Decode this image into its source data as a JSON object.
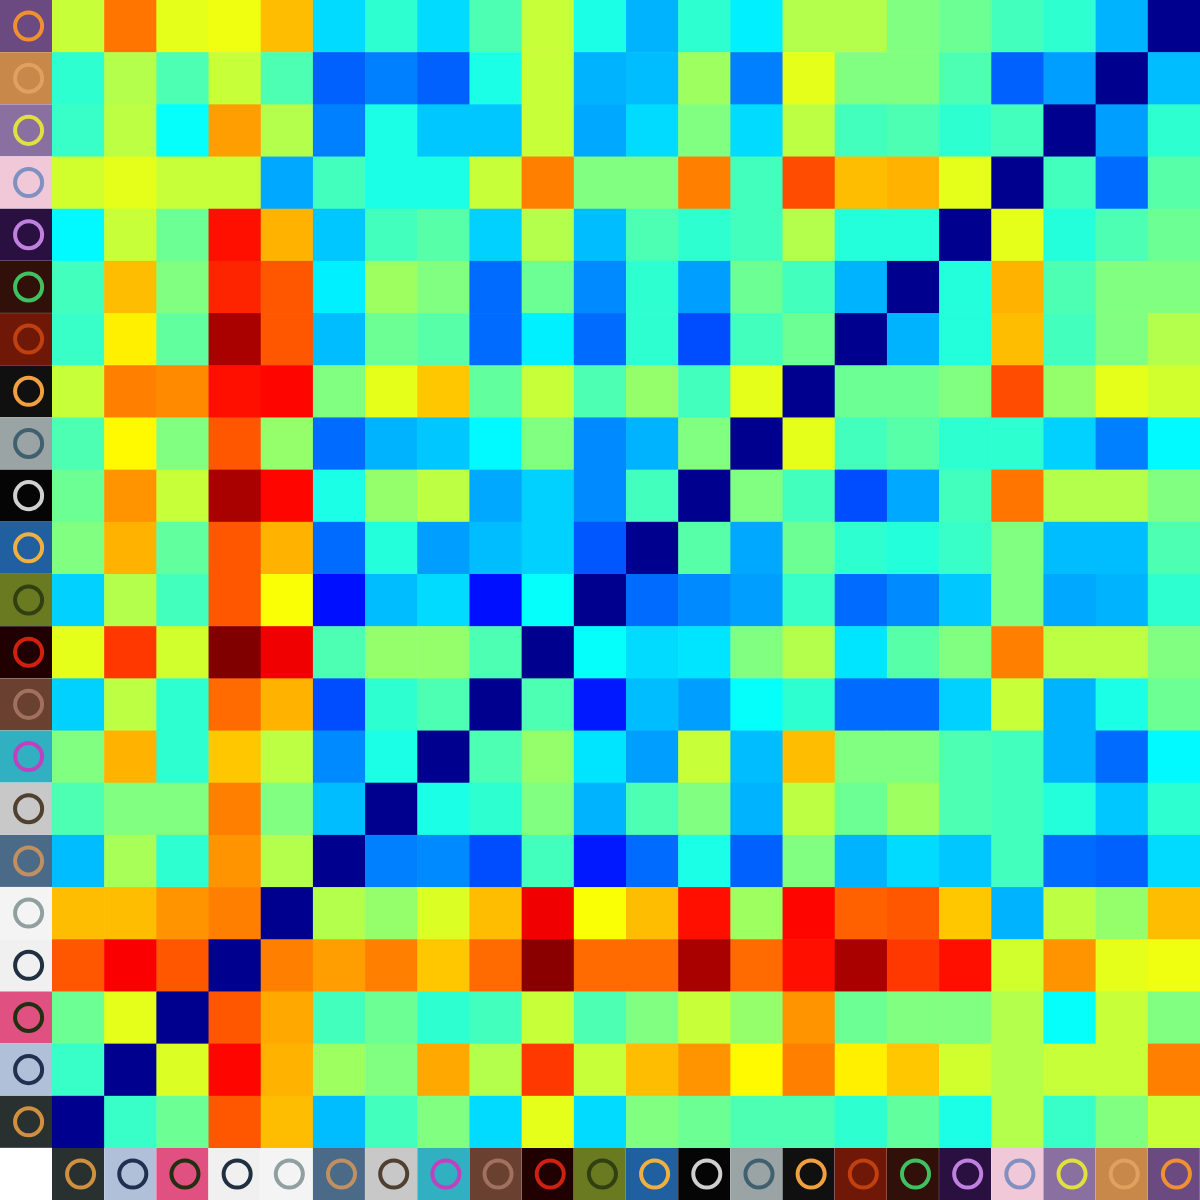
{
  "chart_data": {
    "type": "heatmap",
    "tick_labels": false,
    "zlim": [
      0,
      1
    ],
    "cells": [
      [
        0.57,
        0.76,
        0.6,
        0.61,
        0.69,
        0.34,
        0.42,
        0.34,
        0.45,
        0.57,
        0.4,
        0.3,
        0.42,
        0.36,
        0.55,
        0.55,
        0.5,
        0.48,
        0.44,
        0.42,
        0.3,
        0
      ],
      [
        0.42,
        0.55,
        0.45,
        0.57,
        0.45,
        0.22,
        0.25,
        0.22,
        0.4,
        0.57,
        0.3,
        0.31,
        0.53,
        0.25,
        0.6,
        0.5,
        0.5,
        0.45,
        0.22,
        0.28,
        0,
        0.31
      ],
      [
        0.43,
        0.56,
        0.38,
        0.72,
        0.55,
        0.25,
        0.4,
        0.32,
        0.32,
        0.57,
        0.29,
        0.34,
        0.5,
        0.34,
        0.56,
        0.44,
        0.45,
        0.42,
        0.44,
        0,
        0.28,
        0.42
      ],
      [
        0.58,
        0.6,
        0.57,
        0.57,
        0.29,
        0.44,
        0.4,
        0.4,
        0.57,
        0.75,
        0.5,
        0.5,
        0.75,
        0.44,
        0.8,
        0.69,
        0.7,
        0.6,
        0,
        0.44,
        0.23,
        0.46
      ],
      [
        0.37,
        0.57,
        0.48,
        0.86,
        0.7,
        0.32,
        0.44,
        0.46,
        0.33,
        0.55,
        0.31,
        0.45,
        0.42,
        0.44,
        0.55,
        0.41,
        0.41,
        0,
        0.6,
        0.41,
        0.45,
        0.48
      ],
      [
        0.44,
        0.69,
        0.5,
        0.84,
        0.79,
        0.36,
        0.53,
        0.5,
        0.23,
        0.48,
        0.26,
        0.42,
        0.28,
        0.48,
        0.44,
        0.3,
        0,
        0.41,
        0.7,
        0.45,
        0.5,
        0.5
      ],
      [
        0.43,
        0.64,
        0.47,
        0.96,
        0.79,
        0.31,
        0.48,
        0.46,
        0.23,
        0.36,
        0.23,
        0.42,
        0.2,
        0.44,
        0.48,
        0,
        0.3,
        0.41,
        0.69,
        0.44,
        0.5,
        0.55
      ],
      [
        0.57,
        0.75,
        0.74,
        0.86,
        0.87,
        0.5,
        0.6,
        0.68,
        0.47,
        0.57,
        0.45,
        0.52,
        0.44,
        0.6,
        0,
        0.48,
        0.48,
        0.5,
        0.8,
        0.52,
        0.6,
        0.58
      ],
      [
        0.45,
        0.63,
        0.5,
        0.79,
        0.52,
        0.23,
        0.3,
        0.32,
        0.37,
        0.5,
        0.26,
        0.3,
        0.5,
        0,
        0.6,
        0.44,
        0.46,
        0.42,
        0.42,
        0.33,
        0.25,
        0.37
      ],
      [
        0.48,
        0.73,
        0.57,
        0.96,
        0.87,
        0.4,
        0.52,
        0.56,
        0.29,
        0.33,
        0.26,
        0.44,
        0,
        0.5,
        0.44,
        0.2,
        0.29,
        0.44,
        0.76,
        0.55,
        0.55,
        0.5
      ],
      [
        0.5,
        0.7,
        0.47,
        0.79,
        0.7,
        0.23,
        0.41,
        0.28,
        0.31,
        0.33,
        0.21,
        0,
        0.46,
        0.29,
        0.48,
        0.42,
        0.41,
        0.43,
        0.5,
        0.31,
        0.31,
        0.45
      ],
      [
        0.33,
        0.55,
        0.44,
        0.79,
        0.62,
        0.14,
        0.31,
        0.34,
        0.14,
        0.38,
        0,
        0.23,
        0.26,
        0.28,
        0.43,
        0.23,
        0.26,
        0.32,
        0.5,
        0.29,
        0.3,
        0.42
      ],
      [
        0.6,
        0.82,
        0.58,
        1.0,
        0.89,
        0.45,
        0.52,
        0.52,
        0.45,
        0,
        0.38,
        0.34,
        0.35,
        0.5,
        0.55,
        0.35,
        0.46,
        0.5,
        0.75,
        0.56,
        0.56,
        0.5
      ],
      [
        0.33,
        0.56,
        0.42,
        0.77,
        0.7,
        0.2,
        0.42,
        0.45,
        0,
        0.45,
        0.15,
        0.31,
        0.28,
        0.38,
        0.42,
        0.23,
        0.23,
        0.33,
        0.57,
        0.3,
        0.4,
        0.48
      ],
      [
        0.5,
        0.7,
        0.42,
        0.68,
        0.56,
        0.26,
        0.4,
        0,
        0.45,
        0.52,
        0.35,
        0.28,
        0.57,
        0.31,
        0.69,
        0.5,
        0.5,
        0.45,
        0.44,
        0.3,
        0.23,
        0.37
      ],
      [
        0.45,
        0.5,
        0.5,
        0.75,
        0.5,
        0.31,
        0,
        0.4,
        0.42,
        0.5,
        0.3,
        0.45,
        0.5,
        0.3,
        0.56,
        0.48,
        0.53,
        0.45,
        0.44,
        0.41,
        0.32,
        0.42
      ],
      [
        0.31,
        0.54,
        0.42,
        0.73,
        0.55,
        0,
        0.25,
        0.26,
        0.2,
        0.44,
        0.15,
        0.23,
        0.4,
        0.22,
        0.5,
        0.3,
        0.34,
        0.32,
        0.44,
        0.23,
        0.22,
        0.34
      ],
      [
        0.69,
        0.69,
        0.73,
        0.75,
        0,
        0.55,
        0.52,
        0.59,
        0.69,
        0.89,
        0.62,
        0.69,
        0.86,
        0.53,
        0.87,
        0.78,
        0.79,
        0.68,
        0.3,
        0.56,
        0.52,
        0.69
      ],
      [
        0.79,
        0.88,
        0.79,
        0,
        0.75,
        0.72,
        0.75,
        0.68,
        0.77,
        0.99,
        0.77,
        0.77,
        0.96,
        0.77,
        0.86,
        0.96,
        0.82,
        0.86,
        0.58,
        0.73,
        0.6,
        0.61
      ],
      [
        0.48,
        0.6,
        0,
        0.79,
        0.71,
        0.44,
        0.48,
        0.42,
        0.44,
        0.57,
        0.45,
        0.5,
        0.57,
        0.52,
        0.73,
        0.48,
        0.5,
        0.5,
        0.55,
        0.38,
        0.57,
        0.5
      ],
      [
        0.43,
        0,
        0.59,
        0.87,
        0.7,
        0.53,
        0.5,
        0.71,
        0.55,
        0.82,
        0.57,
        0.69,
        0.73,
        0.63,
        0.75,
        0.64,
        0.68,
        0.58,
        0.55,
        0.57,
        0.57,
        0.75
      ],
      [
        0,
        0.43,
        0.48,
        0.79,
        0.69,
        0.31,
        0.44,
        0.5,
        0.34,
        0.6,
        0.34,
        0.5,
        0.48,
        0.45,
        0.45,
        0.42,
        0.47,
        0.4,
        0.55,
        0.43,
        0.5,
        0.57
      ]
    ]
  }
}
